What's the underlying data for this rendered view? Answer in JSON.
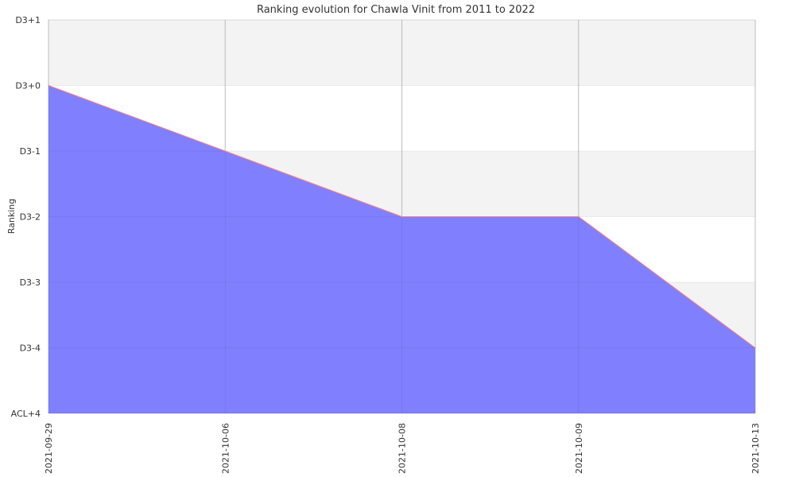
{
  "chart_data": {
    "type": "area",
    "title": "Ranking evolution for Chawla Vinit from 2011 to 2022",
    "xlabel": "",
    "ylabel": "Ranking",
    "x": [
      "2021-09-29",
      "2021-10-06",
      "2021-10-08",
      "2021-10-09",
      "2021-10-13"
    ],
    "series": [
      {
        "values": [
          "D3+0",
          "D3-1",
          "D3-2",
          "D3-2",
          "D3-4"
        ]
      }
    ],
    "y_ticks": [
      "ACL+4",
      "D3-4",
      "D3-3",
      "D3-2",
      "D3-1",
      "D3+0",
      "D3+1"
    ],
    "y_range": [
      "ACL+4",
      "D3+1"
    ],
    "grid": true,
    "band_colors": [
      "#f3f3f3",
      "#ffffff"
    ],
    "grid_color": "#cccccc",
    "fill_color": "#8080ff",
    "line_color": "#ff8080"
  }
}
